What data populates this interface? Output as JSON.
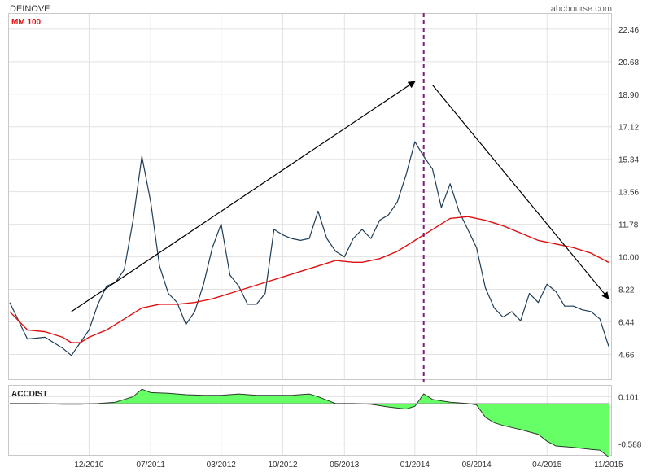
{
  "header": {
    "ticker": "DEINOVE",
    "source": "abcbourse.com",
    "ma_label": "MM 100",
    "indicator_label": "ACCDIST"
  },
  "colors": {
    "price": "#1f3d56",
    "moving_average": "#e01010",
    "accdist_fill": "#66ff66",
    "accdist_line": "#2a3a2a",
    "marker": "#7a1f7a",
    "grid": "#e2e2e2",
    "arrow": "#000000"
  },
  "chart_data": [
    {
      "type": "line",
      "title": "DEINOVE",
      "x_ticks": [
        "12/2010",
        "07/2011",
        "03/2012",
        "10/2012",
        "05/2013",
        "01/2014",
        "08/2014",
        "04/2015",
        "11/2015"
      ],
      "x_range": [
        "2010-03",
        "2015-11"
      ],
      "ylim": [
        3.3,
        23.3
      ],
      "y_ticks": [
        4.66,
        6.44,
        8.22,
        10.0,
        11.78,
        13.56,
        15.34,
        17.12,
        18.9,
        20.68,
        22.46
      ],
      "grid": true,
      "series": [
        {
          "name": "",
          "kind": "price",
          "x": [
            "2010-03",
            "2010-05",
            "2010-07",
            "2010-09",
            "2010-10",
            "2010-11",
            "2010-12",
            "2011-01",
            "2011-02",
            "2011-03",
            "2011-04",
            "2011-05",
            "2011-06",
            "2011-07",
            "2011-08",
            "2011-09",
            "2011-10",
            "2011-11",
            "2011-12",
            "2012-01",
            "2012-02",
            "2012-03",
            "2012-04",
            "2012-05",
            "2012-06",
            "2012-07",
            "2012-08",
            "2012-09",
            "2012-10",
            "2012-11",
            "2012-12",
            "2013-01",
            "2013-02",
            "2013-03",
            "2013-04",
            "2013-05",
            "2013-06",
            "2013-07",
            "2013-08",
            "2013-09",
            "2013-10",
            "2013-11",
            "2013-12",
            "2014-01",
            "2014-02",
            "2014-03",
            "2014-04",
            "2014-05",
            "2014-06",
            "2014-07",
            "2014-08",
            "2014-09",
            "2014-10",
            "2014-11",
            "2014-12",
            "2015-01",
            "2015-02",
            "2015-03",
            "2015-04",
            "2015-05",
            "2015-06",
            "2015-07",
            "2015-08",
            "2015-09",
            "2015-10",
            "2015-11"
          ],
          "y": [
            7.5,
            5.5,
            5.6,
            5.0,
            4.6,
            5.3,
            6.0,
            7.4,
            8.4,
            8.6,
            9.3,
            12.0,
            15.5,
            13.0,
            9.5,
            8.0,
            7.5,
            6.3,
            7.0,
            8.5,
            10.5,
            11.8,
            9.0,
            8.4,
            7.4,
            7.4,
            8.0,
            11.5,
            11.2,
            11.0,
            10.9,
            11.0,
            12.5,
            11.0,
            10.3,
            10.0,
            11.0,
            11.5,
            11.0,
            12.0,
            12.3,
            13.0,
            14.5,
            16.3,
            15.5,
            14.8,
            12.7,
            14.0,
            12.5,
            11.5,
            10.5,
            8.3,
            7.2,
            6.7,
            7.0,
            6.5,
            8.0,
            7.5,
            8.5,
            8.1,
            7.3,
            7.3,
            7.1,
            7.0,
            6.6,
            5.1
          ]
        },
        {
          "name": "MM 100",
          "kind": "moving_average",
          "x": [
            "2010-03",
            "2010-05",
            "2010-07",
            "2010-09",
            "2010-10",
            "2010-11",
            "2010-12",
            "2011-02",
            "2011-04",
            "2011-06",
            "2011-08",
            "2011-10",
            "2011-12",
            "2012-02",
            "2012-04",
            "2012-06",
            "2012-08",
            "2012-10",
            "2012-12",
            "2013-02",
            "2013-04",
            "2013-06",
            "2013-07",
            "2013-09",
            "2013-11",
            "2014-01",
            "2014-03",
            "2014-05",
            "2014-07",
            "2014-09",
            "2014-11",
            "2015-01",
            "2015-03",
            "2015-05",
            "2015-07",
            "2015-09",
            "2015-11"
          ],
          "y": [
            7.0,
            6.0,
            5.9,
            5.6,
            5.3,
            5.3,
            5.6,
            6.0,
            6.6,
            7.2,
            7.4,
            7.4,
            7.5,
            7.7,
            8.0,
            8.3,
            8.6,
            8.9,
            9.2,
            9.5,
            9.8,
            9.7,
            9.7,
            9.9,
            10.3,
            10.9,
            11.5,
            12.1,
            12.2,
            12.0,
            11.7,
            11.3,
            10.9,
            10.7,
            10.5,
            10.2,
            9.7
          ]
        }
      ],
      "annotations": [
        {
          "kind": "arrow",
          "from": {
            "x": "2010-10",
            "y": 7.0
          },
          "to": {
            "x": "2014-01",
            "y": 19.6
          }
        },
        {
          "kind": "arrow",
          "from": {
            "x": "2014-03",
            "y": 19.4
          },
          "to": {
            "x": "2015-11",
            "y": 7.7
          }
        },
        {
          "kind": "vertical_marker",
          "x": "2014-02"
        }
      ]
    },
    {
      "type": "area",
      "title": "ACCDIST",
      "ylim": [
        -0.75,
        0.26
      ],
      "y_ticks": [
        0.101,
        -0.588
      ],
      "grid": true,
      "series": [
        {
          "name": "ACCDIST",
          "x": [
            "2010-03",
            "2010-06",
            "2010-09",
            "2010-11",
            "2011-01",
            "2011-03",
            "2011-05",
            "2011-06",
            "2011-07",
            "2011-09",
            "2011-11",
            "2012-01",
            "2012-03",
            "2012-05",
            "2012-07",
            "2012-09",
            "2012-11",
            "2013-01",
            "2013-02",
            "2013-04",
            "2013-06",
            "2013-08",
            "2013-10",
            "2013-12",
            "2014-01",
            "2014-02",
            "2014-03",
            "2014-05",
            "2014-07",
            "2014-08",
            "2014-09",
            "2014-10",
            "2014-11",
            "2015-01",
            "2015-03",
            "2015-04",
            "2015-05",
            "2015-07",
            "2015-09",
            "2015-10",
            "2015-11"
          ],
          "y": [
            0.0,
            0.0,
            -0.01,
            -0.01,
            0.0,
            0.02,
            0.1,
            0.21,
            0.16,
            0.15,
            0.13,
            0.12,
            0.12,
            0.14,
            0.12,
            0.12,
            0.12,
            0.14,
            0.1,
            0.0,
            0.0,
            -0.01,
            -0.05,
            -0.08,
            -0.04,
            0.14,
            0.06,
            0.02,
            0.0,
            -0.02,
            -0.2,
            -0.28,
            -0.32,
            -0.38,
            -0.45,
            -0.55,
            -0.62,
            -0.64,
            -0.67,
            -0.68,
            -0.78
          ]
        }
      ]
    }
  ]
}
